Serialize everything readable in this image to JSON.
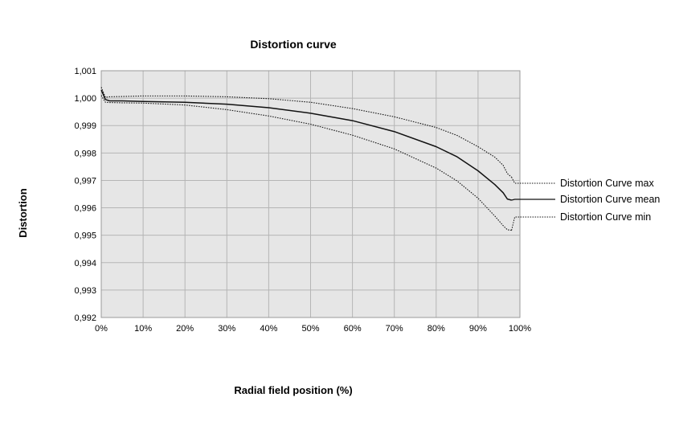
{
  "chart_data": {
    "type": "line",
    "title": "Distortion curve",
    "xlabel": "Radial field position (%)",
    "ylabel": "Distortion",
    "xlim": [
      0,
      100
    ],
    "ylim": [
      0.992,
      1.001
    ],
    "x_ticks": [
      "0%",
      "10%",
      "20%",
      "30%",
      "40%",
      "50%",
      "60%",
      "70%",
      "80%",
      "90%",
      "100%"
    ],
    "y_ticks": [
      "0,992",
      "0,993",
      "0,994",
      "0,995",
      "0,996",
      "0,997",
      "0,998",
      "0,999",
      "1,000",
      "1,001"
    ],
    "grid": true,
    "legend_position": "right",
    "series": [
      {
        "name": "Distortion Curve max",
        "style": "dotted",
        "x": [
          0,
          1,
          2,
          5,
          10,
          20,
          30,
          40,
          50,
          60,
          70,
          80,
          85,
          90,
          94,
          96,
          97,
          98
        ],
        "y": [
          1.0004,
          1.00003,
          1.00005,
          1.00006,
          1.00008,
          1.00008,
          1.00005,
          0.99998,
          0.99985,
          0.99962,
          0.99932,
          0.99893,
          0.99864,
          0.99823,
          0.99785,
          0.99755,
          0.99725,
          0.99712
        ]
      },
      {
        "name": "Distortion Curve mean",
        "style": "solid",
        "x": [
          0,
          1,
          2,
          5,
          10,
          20,
          30,
          40,
          50,
          60,
          70,
          80,
          85,
          90,
          94,
          96,
          97,
          98
        ],
        "y": [
          1.0003,
          0.99995,
          0.9999,
          0.9999,
          0.99988,
          0.99985,
          0.99978,
          0.99965,
          0.99945,
          0.99918,
          0.99878,
          0.99823,
          0.99786,
          0.99735,
          0.99685,
          0.99655,
          0.99632,
          0.99628
        ]
      },
      {
        "name": "Distortion Curve min",
        "style": "dotted",
        "x": [
          0,
          1,
          2,
          5,
          10,
          20,
          30,
          40,
          50,
          60,
          70,
          80,
          85,
          90,
          94,
          96,
          97,
          98
        ],
        "y": [
          1.0001,
          0.99985,
          0.99984,
          0.99983,
          0.99982,
          0.99975,
          0.99958,
          0.99935,
          0.99905,
          0.99865,
          0.99815,
          0.99745,
          0.99698,
          0.99635,
          0.9957,
          0.99535,
          0.9952,
          0.99518
        ]
      }
    ]
  }
}
